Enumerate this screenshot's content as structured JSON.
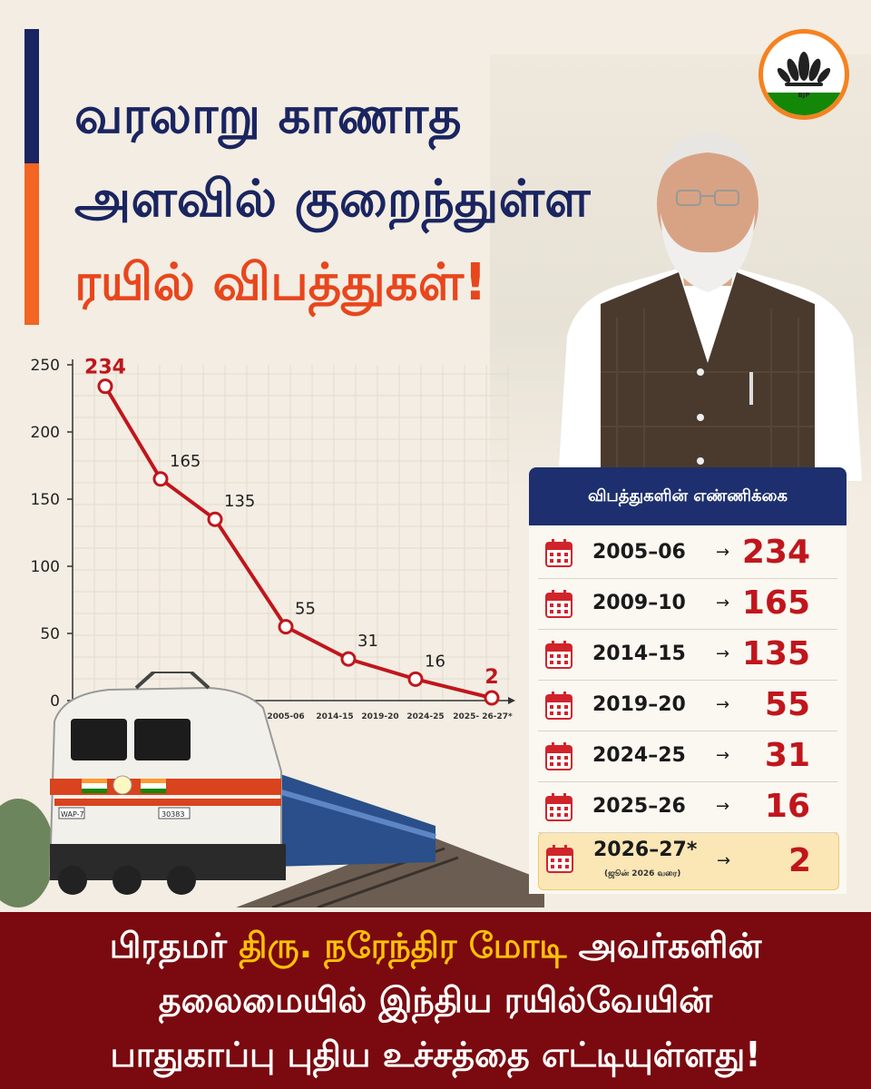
{
  "title": {
    "line1": "வரலாறு காணாத",
    "line2": "அளவில் குறைந்துள்ள",
    "line3": "ரயில் விபத்துகள்!"
  },
  "colors": {
    "navy": "#1a2560",
    "orange": "#f26522",
    "red": "#c0161c",
    "maroon": "#7a0a0f",
    "highlight": "#ffc107"
  },
  "chart_data": {
    "type": "line",
    "title": "",
    "xlabel": "",
    "ylabel": "",
    "ylim": [
      0,
      250
    ],
    "yticks": [
      0,
      50,
      100,
      150,
      200,
      250
    ],
    "xtick_labels": [
      "2005-06",
      "2014-15",
      "2019-20",
      "2024-25",
      "2025- 26-27*"
    ],
    "series": [
      {
        "values": [
          234,
          165,
          135,
          55,
          31,
          16,
          2
        ]
      }
    ],
    "point_labels": [
      "234",
      "165",
      "135",
      "55",
      "31",
      "16",
      "2"
    ],
    "grid": true,
    "line_color": "#c0161c"
  },
  "table": {
    "header": "விபத்துகளின் எண்ணிக்கை",
    "arrow": "→",
    "rows": [
      {
        "period": "2005–06",
        "value": "234"
      },
      {
        "period": "2009–10",
        "value": "165"
      },
      {
        "period": "2014–15",
        "value": "135"
      },
      {
        "period": "2019–20",
        "value": "55"
      },
      {
        "period": "2024–25",
        "value": "31"
      },
      {
        "period": "2025–26",
        "value": "16"
      }
    ],
    "last_row": {
      "period": "2026–27*",
      "note": "(ஜூன் 2026 வரை)",
      "value": "2"
    }
  },
  "train_plates": {
    "class": "WAP-7",
    "number": "30383"
  },
  "logo": {
    "text": "BJP"
  },
  "bottom": {
    "line1_pre": "பிரதமர் ",
    "line1_hl": "திரு. நரேந்திர மோடி",
    "line1_post": " அவர்களின்",
    "line2": "தலைமையில் இந்திய ரயில்வேயின்",
    "line3": "பாதுகாப்பு புதிய உச்சத்தை எட்டியுள்ளது!"
  }
}
